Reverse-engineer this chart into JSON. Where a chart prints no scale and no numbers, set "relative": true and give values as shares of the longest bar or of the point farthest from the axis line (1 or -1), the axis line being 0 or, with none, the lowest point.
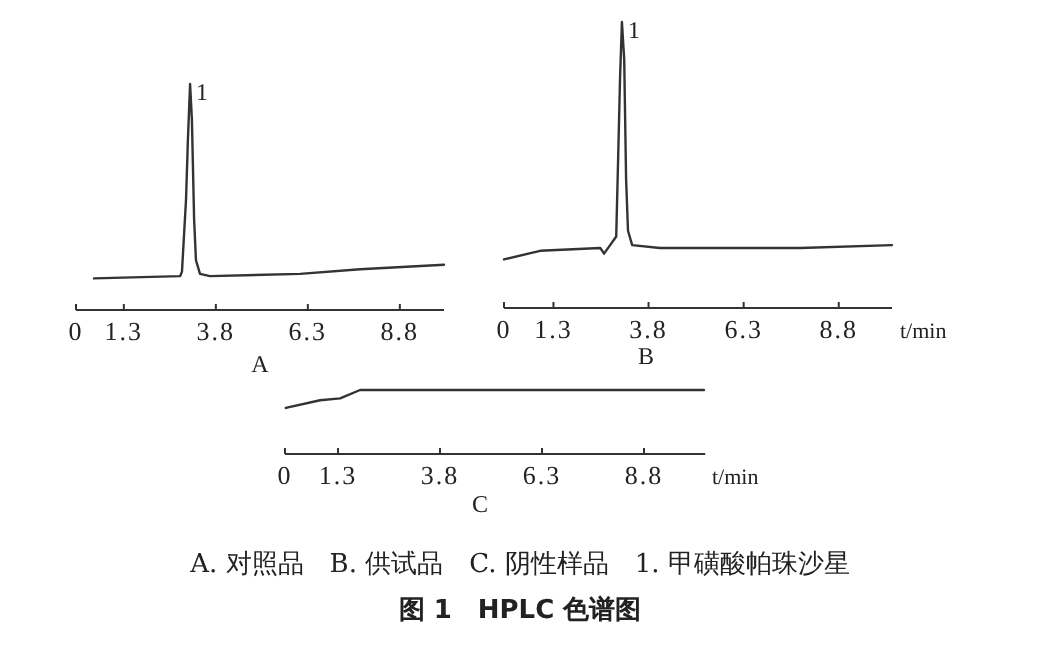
{
  "chart_data": [
    {
      "type": "line",
      "title": "A",
      "relative": true,
      "xlim": [
        0,
        10
      ],
      "xticks": [
        0,
        1.3,
        3.8,
        6.3,
        8.8
      ],
      "series": [
        {
          "color": "#333333",
          "x": [
            0.49,
            2.83,
            2.88,
            2.99,
            3.04,
            3.1,
            3.15,
            3.21,
            3.26,
            3.37,
            3.64,
            6.09,
            7.72,
            10
          ],
          "values": [
            0.14,
            0.15,
            0.17,
            0.49,
            0.75,
            1.0,
            0.84,
            0.4,
            0.22,
            0.16,
            0.15,
            0.16,
            0.18,
            0.2
          ]
        }
      ],
      "annotations": [
        {
          "text": "1",
          "x": 3.1,
          "y": 1.0
        }
      ]
    },
    {
      "type": "line",
      "title": "B",
      "xlabel": "t/min",
      "relative": true,
      "xlim": [
        0,
        10.2
      ],
      "xticks": [
        0,
        1.3,
        3.8,
        6.3,
        8.8
      ],
      "series": [
        {
          "color": "#333333",
          "x": [
            0,
            0.95,
            2.53,
            2.63,
            2.79,
            2.95,
            3.0,
            3.05,
            3.1,
            3.16,
            3.21,
            3.26,
            3.37,
            4.1,
            7.79,
            10.2
          ],
          "values": [
            0.17,
            0.2,
            0.21,
            0.19,
            0.22,
            0.25,
            0.52,
            0.8,
            1.0,
            0.87,
            0.45,
            0.27,
            0.22,
            0.21,
            0.21,
            0.22
          ]
        }
      ],
      "annotations": [
        {
          "text": "1",
          "x": 3.1,
          "y": 1.0
        }
      ]
    },
    {
      "type": "line",
      "title": "C",
      "xlabel": "t/min",
      "relative": true,
      "xlim": [
        0,
        10.3
      ],
      "xticks": [
        0,
        1.3,
        3.8,
        6.3,
        8.8
      ],
      "series": [
        {
          "color": "#333333",
          "x": [
            0.02,
            0.86,
            1.35,
            1.84,
            10.27
          ],
          "values": [
            0.72,
            0.84,
            0.87,
            1.0,
            1.0
          ]
        }
      ]
    },
    {
      "type": "other",
      "annotations": [
        "A. 对照品　B. 供试品　C. 阴性样品　1. 甲磺酸帕珠沙星"
      ],
      "title": "图 1　HPLC 色谱图"
    }
  ]
}
